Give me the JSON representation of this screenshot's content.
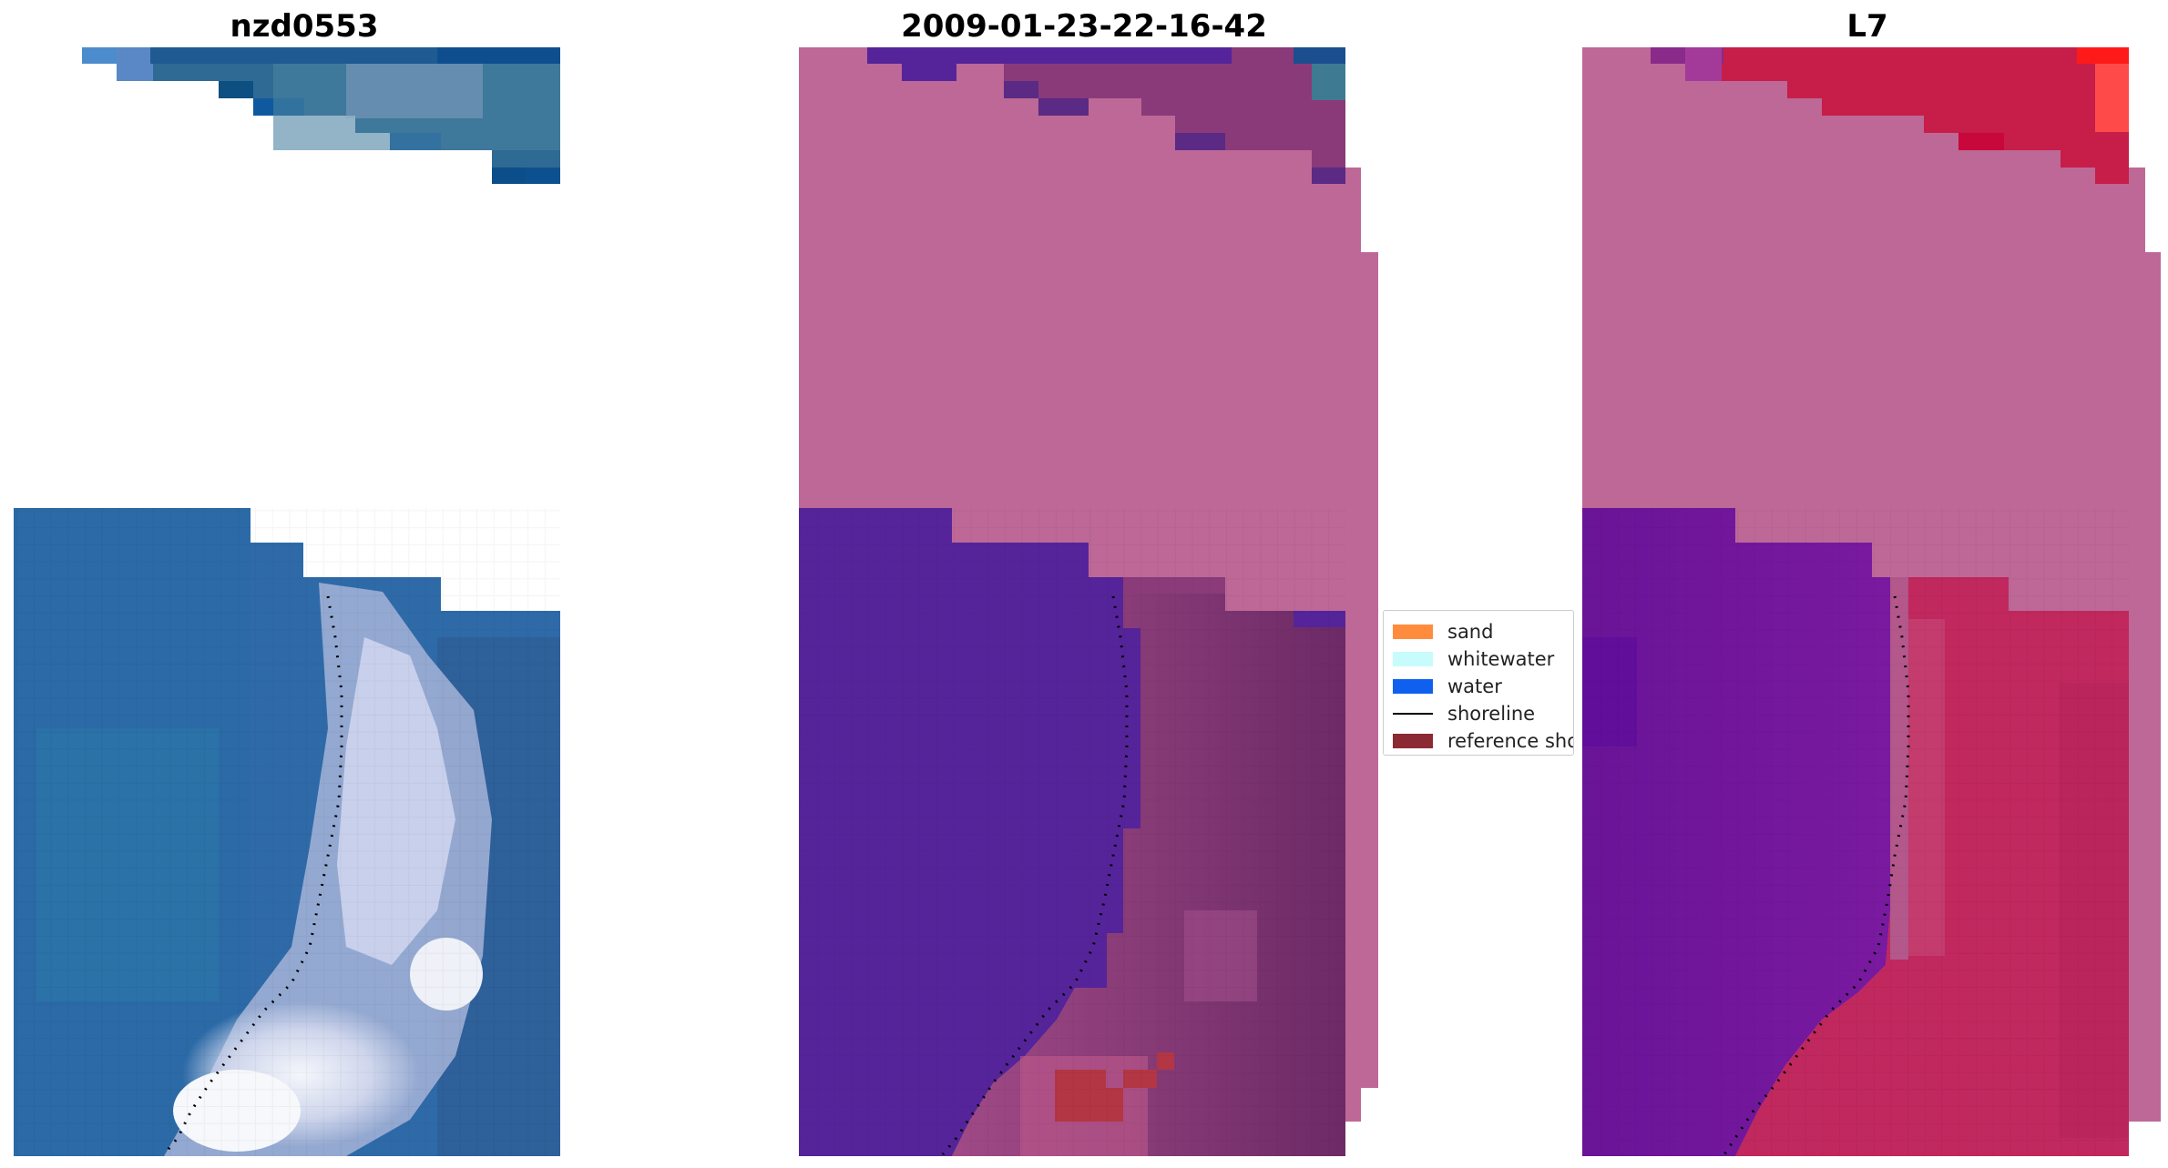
{
  "panels": [
    {
      "title": "nzd0553"
    },
    {
      "title": "2009-01-23-22-16-42"
    },
    {
      "title": "L7"
    }
  ],
  "legend": {
    "items": [
      {
        "label": "sand",
        "color": "#ff8c3c"
      },
      {
        "label": "whitewater",
        "color": "#c8fbfb"
      },
      {
        "label": "water",
        "color": "#1060f0"
      },
      {
        "label": "shoreline",
        "color": "#000000"
      },
      {
        "label": "reference shoreline",
        "color": "#8b2a33"
      }
    ]
  },
  "colors": {
    "ocean_rgb": "#2f6aa8",
    "surf_rgb": "#d8ddf0",
    "no_data_overlay": "#bd6897",
    "water_overlay": "#55249a",
    "land_overlay": "#8a3a78",
    "false_color_land": "#c0285e",
    "false_color_water": "#6a1498"
  }
}
